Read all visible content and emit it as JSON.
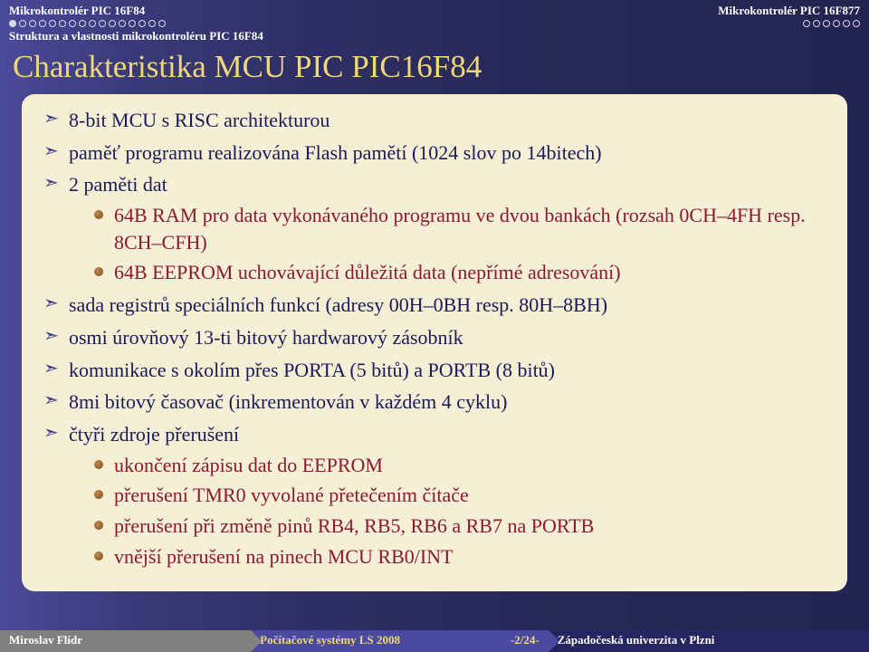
{
  "header": {
    "left": "Mikrokontrolér PIC 16F84",
    "right": "Mikrokontrolér PIC 16F877",
    "subtitle": "Struktura a vlastnosti mikrokontroléru PIC 16F84",
    "left_dots_total": 16,
    "left_dots_filled": 1,
    "right_dots_total": 6,
    "right_dots_filled": 0
  },
  "title": "Charakteristika MCU PIC PIC16F84",
  "bullets": [
    {
      "text": "8-bit MCU s RISC architekturou"
    },
    {
      "text": "paměť programu realizována Flash pamětí (1024 slov po 14bitech)"
    },
    {
      "text": "2 paměti dat",
      "children": [
        "64B RAM pro data vykonávaného programu ve dvou bankách (rozsah 0CH–4FH resp. 8CH–CFH)",
        "64B EEPROM uchovávající důležitá data (nepřímé adresování)"
      ]
    },
    {
      "text": "sada registrů speciálních funkcí (adresy 00H–0BH resp. 80H–8BH)"
    },
    {
      "text": "osmi úrovňový 13-ti bitový hardwarový zásobník"
    },
    {
      "text": "komunikace s okolím přes PORTA (5 bitů) a PORTB (8 bitů)"
    },
    {
      "text": "8mi bitový časovač (inkrementován v každém 4 cyklu)"
    },
    {
      "text": "čtyři zdroje přerušení",
      "children": [
        "ukončení zápisu dat do EEPROM",
        "přerušení TMR0 vyvolané přetečením čítače",
        "přerušení při změně pinů RB4, RB5, RB6 a RB7 na PORTB",
        "vnější přerušení na pinech MCU RB0/INT"
      ]
    }
  ],
  "footer": {
    "author": "Miroslav Flídr",
    "course": "Počítačové systémy LS 2008",
    "page": "-2/24-",
    "affiliation": "Západočeská univerzita v Plzni"
  }
}
